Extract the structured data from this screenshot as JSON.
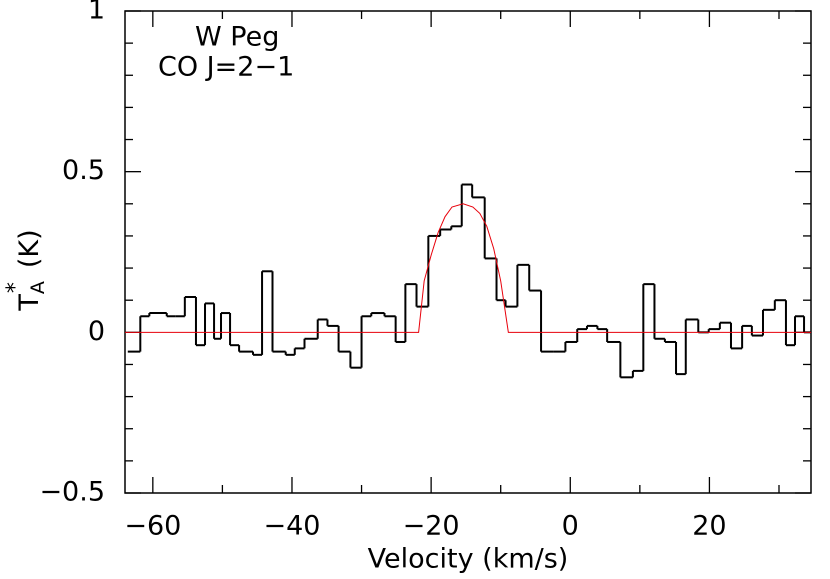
{
  "chart_data": {
    "type": "step",
    "annotations": [
      "W Peg",
      "CO J=2−1"
    ],
    "xlabel": "Velocity (km/s)",
    "ylabel": {
      "text": "T",
      "sub": "A",
      "sup": "*",
      "unit": "(K)"
    },
    "xlim": [
      -64,
      34.6
    ],
    "ylim": [
      -0.5,
      1
    ],
    "xticks": [
      {
        "value": -60,
        "label": "−60"
      },
      {
        "value": -40,
        "label": "−40"
      },
      {
        "value": -20,
        "label": "−20"
      },
      0,
      20
    ],
    "yticks": [
      {
        "value": -0.5,
        "label": "−0.5"
      },
      0,
      0.5,
      1
    ],
    "xminor": [
      -50,
      -30,
      -10,
      10,
      30
    ],
    "yminor": [
      -0.4,
      -0.3,
      -0.2,
      -0.1,
      0.1,
      0.2,
      0.3,
      0.4,
      0.6,
      0.7,
      0.8,
      0.9
    ],
    "series": [
      {
        "type": "step",
        "color": "#000000",
        "bins": [
          -63.6,
          -61.8,
          -60.5,
          -58.0,
          -56.7,
          -55.4,
          -53.8,
          -52.5,
          -51.2,
          -50.2,
          -48.9,
          -47.6,
          -45.6,
          -44.3,
          -42.8,
          -40.9,
          -39.6,
          -38.2,
          -36.3,
          -34.9,
          -33.3,
          -31.6,
          -30.0,
          -28.6,
          -26.7,
          -25.1,
          -23.7,
          -22.1,
          -20.4,
          -18.7,
          -17.1,
          -15.6,
          -14.1,
          -12.3,
          -10.6,
          -9.3,
          -7.6,
          -5.9,
          -4.2,
          -2.4,
          -0.7,
          1.0,
          2.4,
          3.9,
          5.3,
          7.2,
          9.0,
          10.5,
          12.1,
          13.6,
          15.2,
          16.6,
          18.4,
          19.9,
          21.5,
          23.1,
          24.7,
          26.1,
          27.7,
          29.4,
          31.0,
          32.3,
          33.6,
          34.6
        ],
        "values": [
          -0.06,
          0.05,
          0.06,
          0.05,
          0.05,
          0.11,
          -0.04,
          0.09,
          -0.02,
          0.06,
          -0.04,
          -0.06,
          -0.07,
          0.19,
          -0.06,
          -0.07,
          -0.05,
          -0.02,
          0.04,
          0.02,
          -0.06,
          -0.11,
          0.05,
          0.06,
          0.05,
          -0.03,
          0.15,
          0.08,
          0.3,
          0.32,
          0.33,
          0.46,
          0.42,
          0.23,
          0.1,
          0.08,
          0.21,
          0.13,
          -0.06,
          -0.06,
          -0.03,
          0.01,
          0.02,
          0.01,
          -0.03,
          -0.14,
          -0.12,
          0.15,
          -0.02,
          -0.03,
          -0.13,
          0.04,
          0.0,
          0.01,
          0.03,
          -0.05,
          0.02,
          -0.01,
          0.07,
          0.1,
          -0.04,
          0.05,
          0.0
        ]
      },
      {
        "type": "line",
        "color": "#e8000b",
        "x": [
          -64,
          -21.8,
          -21,
          -20,
          -19,
          -18,
          -17,
          -15.4,
          -14,
          -13,
          -12,
          -11,
          -10,
          -8.9,
          34.6
        ],
        "values": [
          0,
          0,
          0.16,
          0.24,
          0.31,
          0.36,
          0.39,
          0.4,
          0.39,
          0.37,
          0.33,
          0.26,
          0.16,
          0,
          0
        ]
      }
    ]
  }
}
